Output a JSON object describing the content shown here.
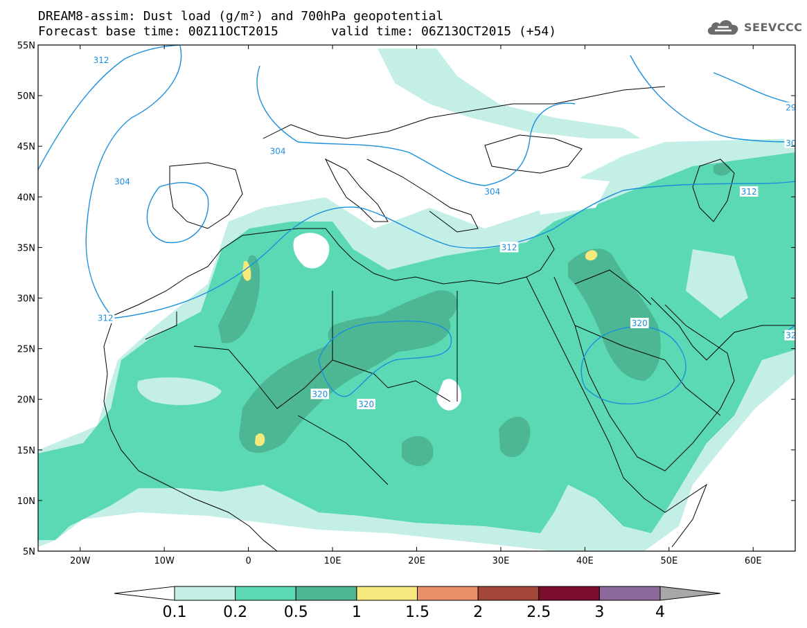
{
  "header": {
    "title": "DREAM8-assim: Dust load (g/m²) and 700hPa geopotential",
    "base_time": "Forecast base time: 00Z11OCT2015",
    "valid_time": "valid time: 06Z13OCT2015 (+54)"
  },
  "logo": {
    "text": "SEEVCCC",
    "icon": "cloud-icon"
  },
  "map": {
    "lon_range": [
      -25,
      65
    ],
    "lat_range": [
      5,
      55
    ],
    "lon_ticks": [
      {
        "v": -20,
        "label": "20W"
      },
      {
        "v": -10,
        "label": "10W"
      },
      {
        "v": 0,
        "label": "0"
      },
      {
        "v": 10,
        "label": "10E"
      },
      {
        "v": 20,
        "label": "20E"
      },
      {
        "v": 30,
        "label": "30E"
      },
      {
        "v": 40,
        "label": "40E"
      },
      {
        "v": 50,
        "label": "50E"
      },
      {
        "v": 60,
        "label": "60E"
      }
    ],
    "lat_ticks": [
      {
        "v": 55,
        "label": "55N"
      },
      {
        "v": 50,
        "label": "50N"
      },
      {
        "v": 45,
        "label": "45N"
      },
      {
        "v": 40,
        "label": "40N"
      },
      {
        "v": 35,
        "label": "35N"
      },
      {
        "v": 30,
        "label": "30N"
      },
      {
        "v": 25,
        "label": "25N"
      },
      {
        "v": 20,
        "label": "20N"
      },
      {
        "v": 15,
        "label": "15N"
      },
      {
        "v": 10,
        "label": "10N"
      },
      {
        "v": 5,
        "label": "5N"
      }
    ],
    "geopotential_labels": [
      {
        "text": "312",
        "lon": -17.5,
        "lat": 53.5
      },
      {
        "text": "304",
        "lon": 3.5,
        "lat": 44.5
      },
      {
        "text": "304",
        "lon": -15,
        "lat": 41.5
      },
      {
        "text": "304",
        "lon": 29,
        "lat": 40.5
      },
      {
        "text": "312",
        "lon": -17,
        "lat": 28
      },
      {
        "text": "312",
        "lon": 31,
        "lat": 35
      },
      {
        "text": "312",
        "lon": 59.5,
        "lat": 40.5
      },
      {
        "text": "320",
        "lon": 8.5,
        "lat": 20.5
      },
      {
        "text": "320",
        "lon": 14,
        "lat": 19.5
      },
      {
        "text": "320",
        "lon": 46.5,
        "lat": 27.5
      },
      {
        "text": "29",
        "lon": 64.5,
        "lat": 48.8
      },
      {
        "text": "30",
        "lon": 64.5,
        "lat": 45.3
      },
      {
        "text": "32",
        "lon": 64.5,
        "lat": 26.3
      }
    ]
  },
  "colorbar": {
    "colors": [
      "#ffffff",
      "#c3efe6",
      "#5bd9b4",
      "#4db793",
      "#f5e87d",
      "#ea9068",
      "#a3473b",
      "#7d0d2c",
      "#8d6a9c",
      "#a8a8a8"
    ],
    "labels": [
      "0.1",
      "0.2",
      "0.5",
      "1",
      "1.5",
      "2",
      "2.5",
      "3",
      "4"
    ]
  },
  "legend_colors": {
    "very_light": "#c3efe6",
    "light": "#5bd9b4",
    "medium": "#4db793",
    "high": "#f5e87d",
    "contour": "#1a8fdc"
  }
}
